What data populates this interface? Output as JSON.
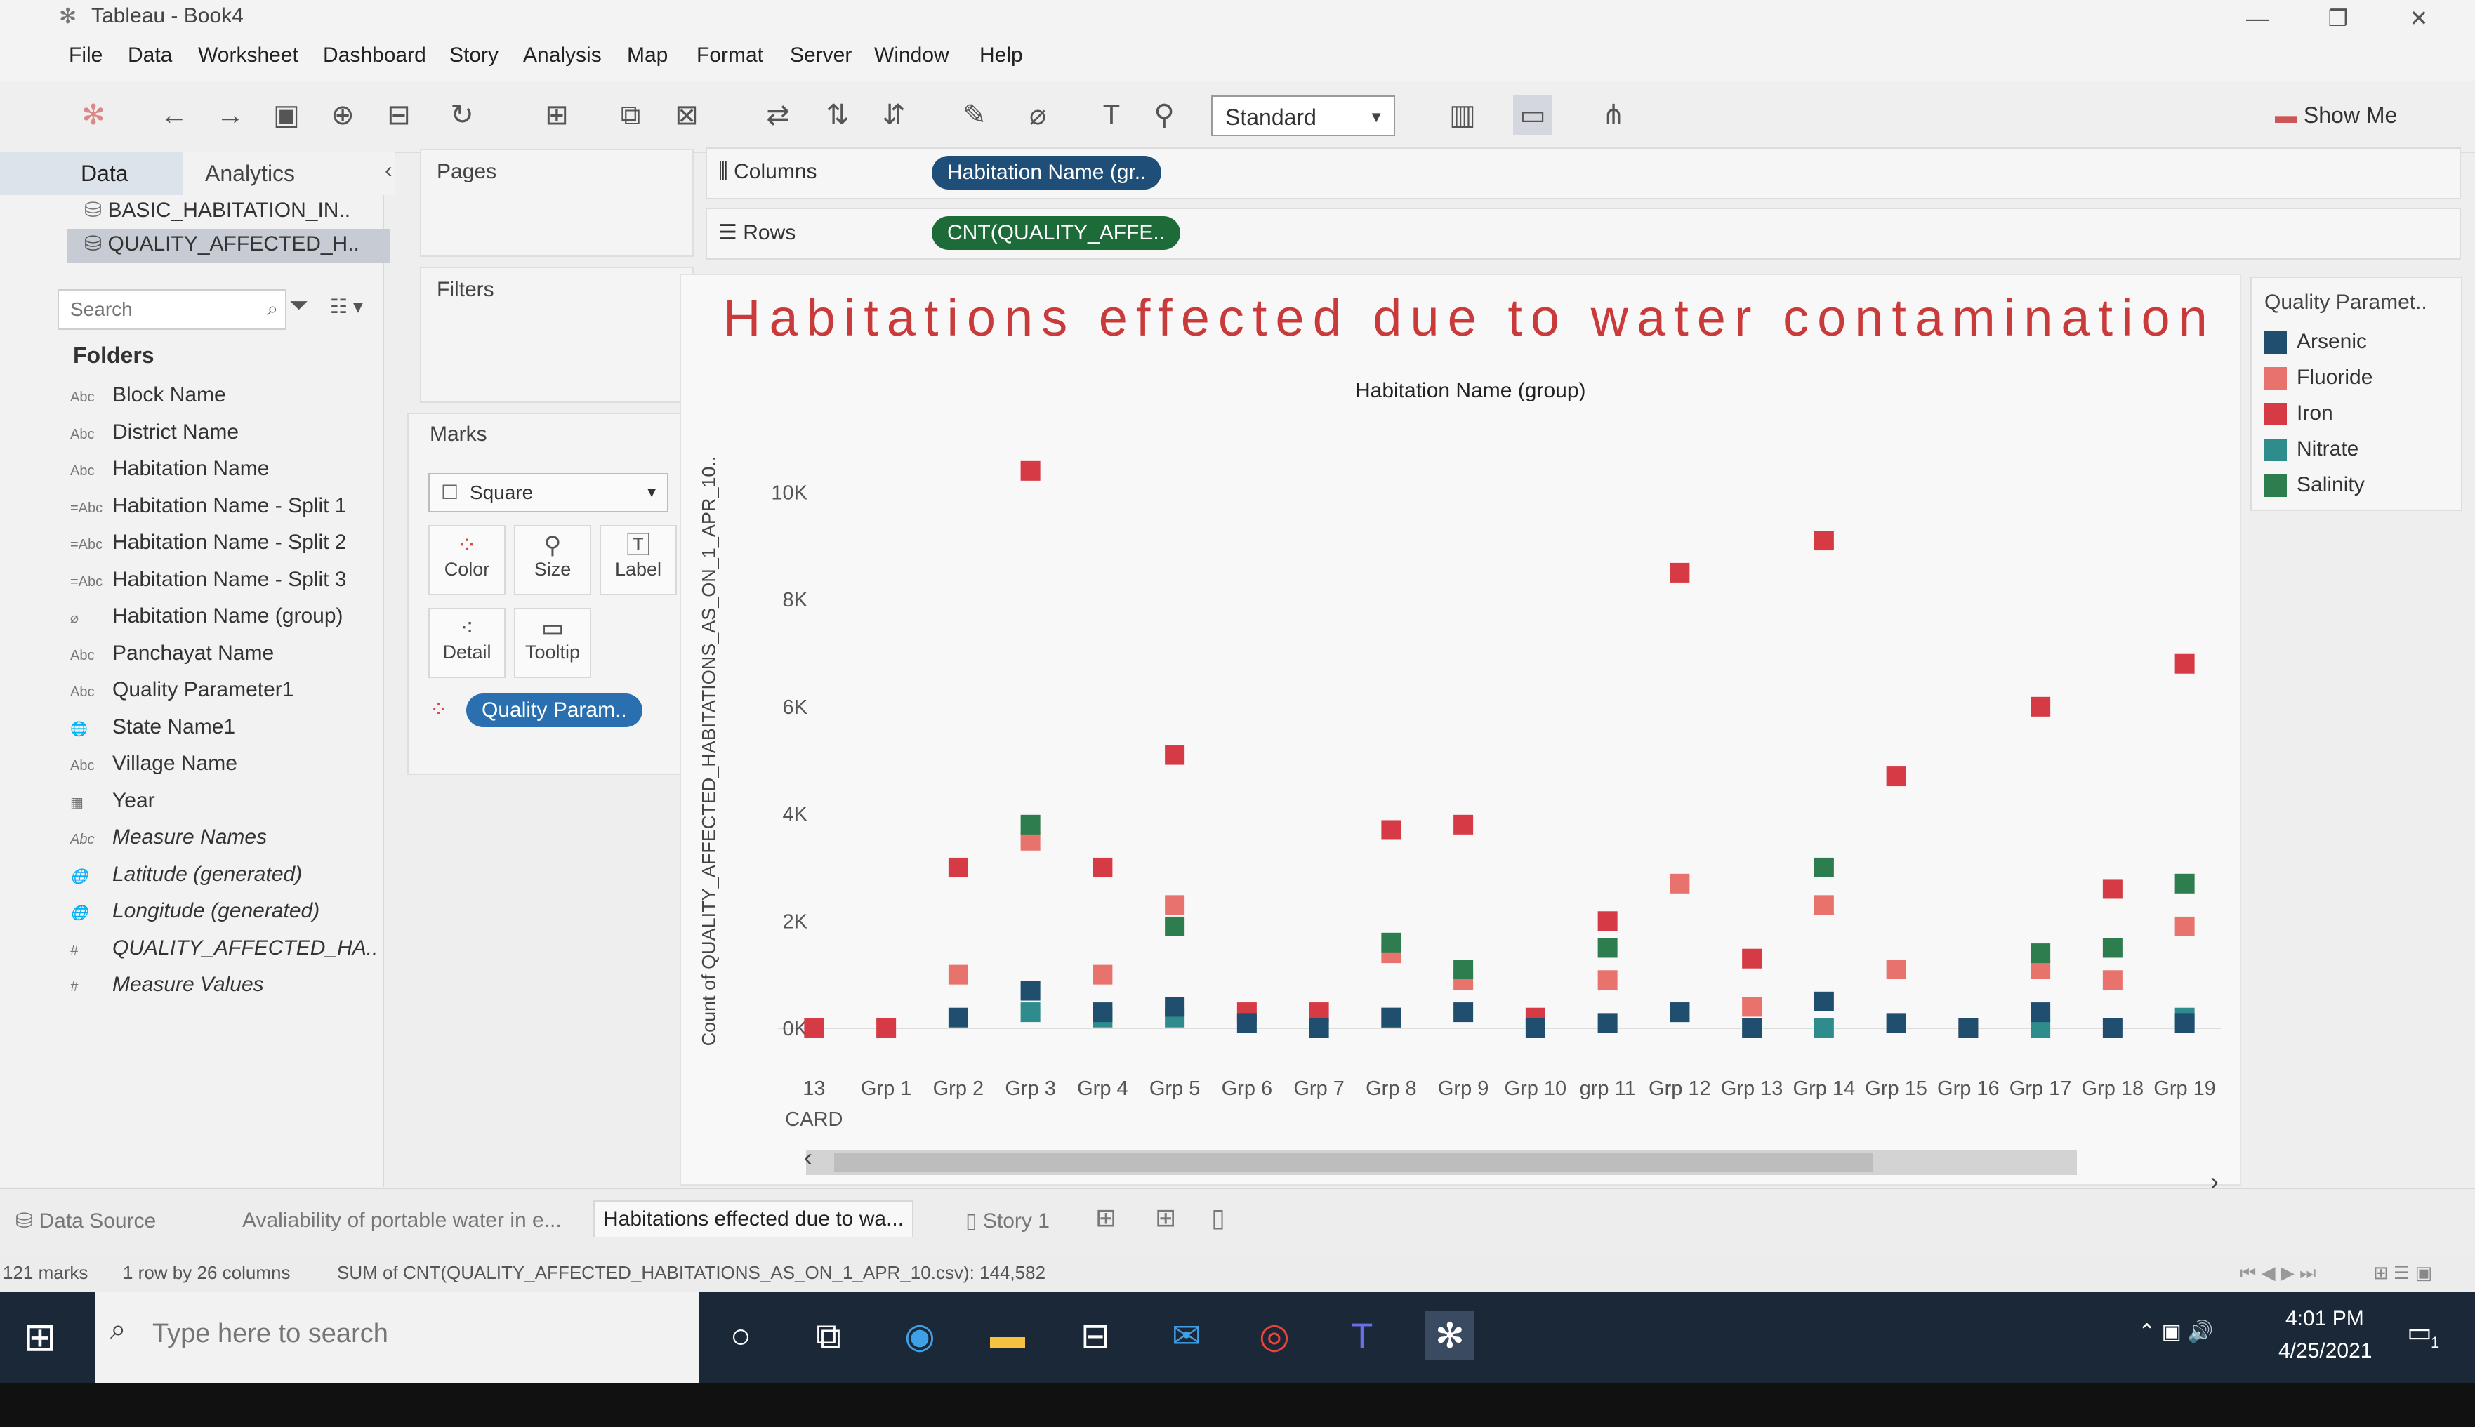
{
  "window": {
    "title": "Tableau - Book4"
  },
  "menu": [
    "File",
    "Data",
    "Worksheet",
    "Dashboard",
    "Story",
    "Analysis",
    "Map",
    "Format",
    "Server",
    "Window",
    "Help"
  ],
  "toolbar": {
    "mark_fit": "Standard",
    "show_me": "Show Me"
  },
  "datapane": {
    "tab_data": "Data",
    "tab_analytics": "Analytics",
    "datasources": [
      "BASIC_HABITATION_IN..",
      "QUALITY_AFFECTED_H.."
    ],
    "search_placeholder": "Search",
    "folders_label": "Folders",
    "fields": [
      {
        "type": "Abc",
        "name": "Block Name",
        "italic": false
      },
      {
        "type": "Abc",
        "name": "District Name",
        "italic": false
      },
      {
        "type": "Abc",
        "name": "Habitation Name",
        "italic": false
      },
      {
        "type": "=Abc",
        "name": "Habitation Name - Split 1",
        "italic": false
      },
      {
        "type": "=Abc",
        "name": "Habitation Name - Split 2",
        "italic": false
      },
      {
        "type": "=Abc",
        "name": "Habitation Name - Split 3",
        "italic": false
      },
      {
        "type": "paperclip",
        "name": "Habitation Name (group)",
        "italic": false
      },
      {
        "type": "Abc",
        "name": "Panchayat Name",
        "italic": false
      },
      {
        "type": "Abc",
        "name": "Quality Parameter1",
        "italic": false
      },
      {
        "type": "globe",
        "name": "State Name1",
        "italic": false
      },
      {
        "type": "Abc",
        "name": "Village Name",
        "italic": false
      },
      {
        "type": "calendar",
        "name": "Year",
        "italic": false
      },
      {
        "type": "Abc",
        "name": "Measure Names",
        "italic": true
      },
      {
        "type": "globe",
        "name": "Latitude (generated)",
        "italic": true
      },
      {
        "type": "globe",
        "name": "Longitude (generated)",
        "italic": true
      },
      {
        "type": "#",
        "name": "QUALITY_AFFECTED_HA..",
        "italic": true
      },
      {
        "type": "#",
        "name": "Measure Values",
        "italic": true
      }
    ]
  },
  "cards": {
    "pages": "Pages",
    "filters": "Filters",
    "marks": "Marks",
    "mark_type": "Square",
    "buttons": [
      "Color",
      "Size",
      "Label",
      "Detail",
      "Tooltip"
    ],
    "color_pill": "Quality Param.."
  },
  "shelves": {
    "columns_label": "Columns",
    "rows_label": "Rows",
    "columns_pill": "Habitation Name (gr..",
    "rows_pill": "CNT(QUALITY_AFFE.."
  },
  "legend": {
    "title": "Quality Paramet..",
    "items": [
      {
        "name": "Arsenic",
        "color": "#1f4e6e"
      },
      {
        "name": "Fluoride",
        "color": "#e8736c"
      },
      {
        "name": "Iron",
        "color": "#d63a45"
      },
      {
        "name": "Nitrate",
        "color": "#2e8c8c"
      },
      {
        "name": "Salinity",
        "color": "#2e7d4f"
      }
    ]
  },
  "chart_data": {
    "type": "scatter",
    "title": "Habitations effected due to water contamination",
    "subtitle": "Habitation Name (group)",
    "ylabel": "Count of QUALITY_AFFECTED_HABITATIONS_AS_ON_1_APR_10..",
    "ylim": [
      0,
      11000
    ],
    "yticks": [
      "0K",
      "2K",
      "4K",
      "6K",
      "8K",
      "10K"
    ],
    "categories": [
      "13 CARD",
      "Grp 1",
      "Grp 2",
      "Grp 3",
      "Grp 4",
      "Grp 5",
      "Grp 6",
      "Grp 7",
      "Grp 8",
      "Grp 9",
      "Grp 10",
      "grp 11",
      "Grp 12",
      "Grp 13",
      "Grp 14",
      "Grp 15",
      "Grp 16",
      "Grp 17",
      "Grp 18",
      "Grp 19"
    ],
    "series": [
      {
        "name": "Iron",
        "color": "#d63a45",
        "values": [
          0,
          0,
          3000,
          10400,
          3000,
          5100,
          300,
          300,
          3700,
          3800,
          200,
          2000,
          8500,
          1300,
          9100,
          4700,
          0,
          6000,
          2600,
          6800
        ]
      },
      {
        "name": "Fluoride",
        "color": "#e8736c",
        "values": [
          null,
          null,
          1000,
          3500,
          1000,
          2300,
          null,
          null,
          1400,
          900,
          null,
          900,
          2700,
          400,
          2300,
          1100,
          null,
          1100,
          900,
          1900
        ]
      },
      {
        "name": "Salinity",
        "color": "#2e7d4f",
        "values": [
          null,
          null,
          null,
          3800,
          null,
          1900,
          null,
          null,
          1600,
          1100,
          null,
          1500,
          null,
          null,
          3000,
          null,
          null,
          1400,
          1500,
          2700
        ]
      },
      {
        "name": "Nitrate",
        "color": "#2e8c8c",
        "values": [
          null,
          null,
          null,
          300,
          200,
          200,
          null,
          null,
          200,
          null,
          null,
          null,
          300,
          null,
          0,
          null,
          null,
          0,
          null,
          200
        ]
      },
      {
        "name": "Arsenic",
        "color": "#1f4e6e",
        "values": [
          null,
          null,
          200,
          700,
          300,
          400,
          100,
          0,
          200,
          300,
          0,
          100,
          300,
          0,
          500,
          100,
          0,
          300,
          0,
          100
        ]
      }
    ],
    "grid": false,
    "legend": "right"
  },
  "sheettabs": {
    "datasource": "Data Source",
    "tabs": [
      "Avaliability of portable water in e...",
      "Habitations effected due to wa...",
      "Story 1"
    ]
  },
  "status": {
    "marks": "121 marks",
    "dims": "1 row by 26 columns",
    "sum": "SUM of CNT(QUALITY_AFFECTED_HABITATIONS_AS_ON_1_APR_10.csv): 144,582"
  },
  "taskbar": {
    "search_placeholder": "Type here to search",
    "time": "4:01 PM",
    "date": "4/25/2021",
    "notif_count": "1"
  }
}
